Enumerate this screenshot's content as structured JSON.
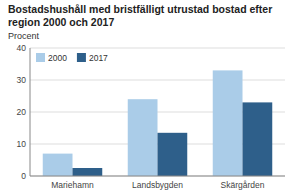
{
  "chart_data": {
    "type": "bar",
    "title": "Bostadshushåll med bristfälligt utrustad bostad efter region 2000 och 2017",
    "y_label": "Procent",
    "categories": [
      "Mariehamn",
      "Landsbygden",
      "Skärgården"
    ],
    "series": [
      {
        "name": "2000",
        "color": "#aacce8",
        "values": [
          7,
          24,
          33
        ]
      },
      {
        "name": "2017",
        "color": "#2e5f8a",
        "values": [
          2.5,
          13.5,
          23
        ]
      }
    ],
    "ylim": [
      0,
      40
    ],
    "yticks": [
      0,
      10,
      20,
      30,
      40
    ],
    "grid": true,
    "legend": "upper left"
  }
}
